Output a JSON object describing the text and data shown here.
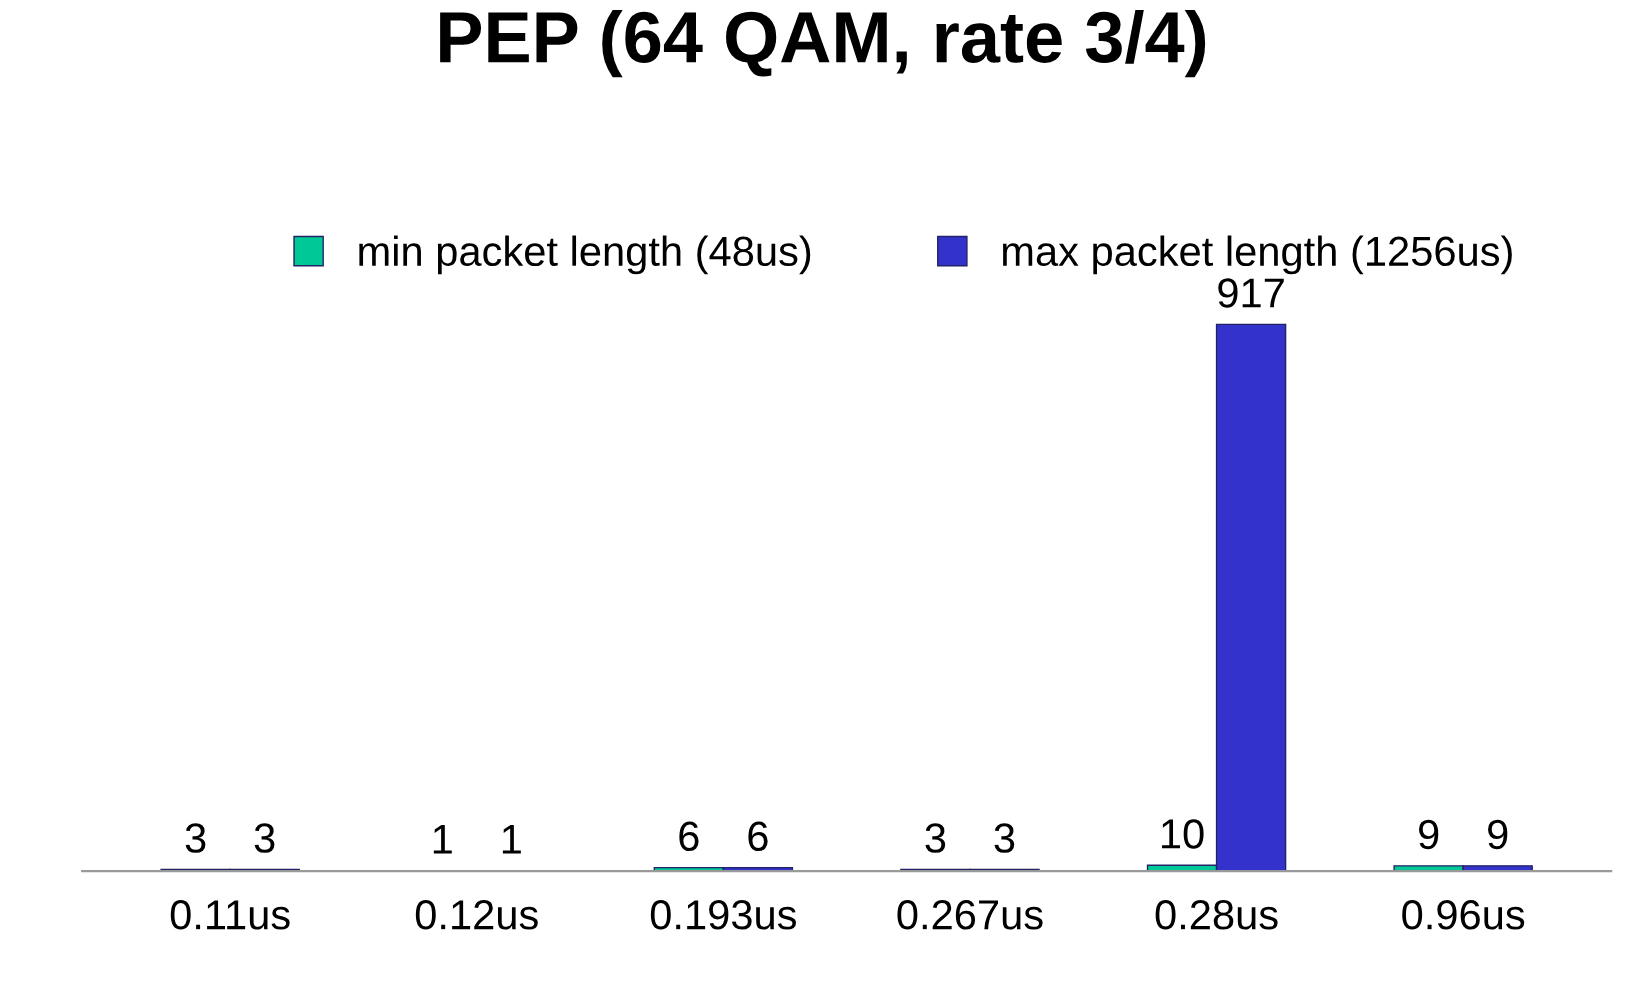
{
  "chart_data": {
    "type": "bar",
    "title": "PEP (64 QAM, rate 3/4)",
    "categories": [
      "0.11us",
      "0.12us",
      "0.193us",
      "0.267us",
      "0.28us",
      "0.96us"
    ],
    "series": [
      {
        "name": "min packet length (48us)",
        "color": "#00c896",
        "values": [
          3,
          1,
          6,
          3,
          10,
          9
        ]
      },
      {
        "name": "max packet length (1256us)",
        "color": "#3333cc",
        "values": [
          3,
          1,
          6,
          3,
          917,
          9
        ]
      }
    ],
    "data_labels": true,
    "legend": "top",
    "grid": false
  }
}
